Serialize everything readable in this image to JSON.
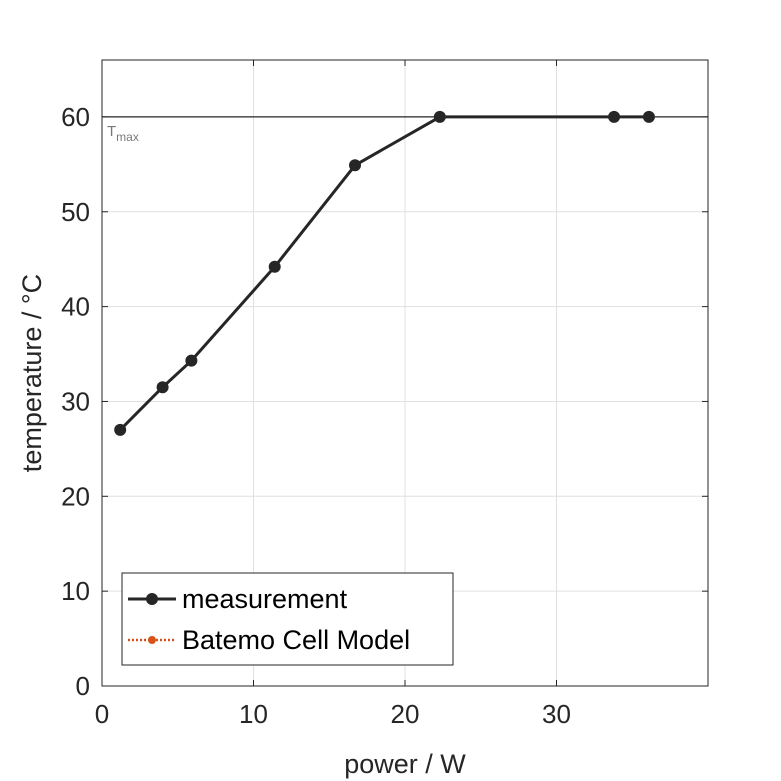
{
  "chart_data": {
    "type": "line",
    "xlabel": "power / W",
    "ylabel": "temperature / °C",
    "xlim": [
      0,
      40
    ],
    "ylim": [
      0,
      66
    ],
    "xticks": [
      0,
      10,
      20,
      30
    ],
    "yticks": [
      0,
      10,
      20,
      30,
      40,
      50,
      60
    ],
    "grid": true,
    "legend_position": "bottom-left",
    "series": [
      {
        "name": "measurement",
        "color": "#262626",
        "marker": "circle",
        "line_style": "solid",
        "x": [
          1.2,
          4.0,
          5.9,
          11.4,
          16.7,
          22.3,
          33.8,
          36.1
        ],
        "y": [
          27.0,
          31.5,
          34.3,
          44.2,
          54.9,
          60.0,
          60.0,
          60.0
        ]
      },
      {
        "name": "Batemo Cell Model",
        "color": "#D95319",
        "marker": "circle",
        "line_style": "dotted",
        "x": [],
        "y": []
      }
    ],
    "reference_lines": [
      {
        "axis": "y",
        "value": 60,
        "label_main": "T",
        "label_sub": "max",
        "color": "#262626"
      }
    ]
  }
}
